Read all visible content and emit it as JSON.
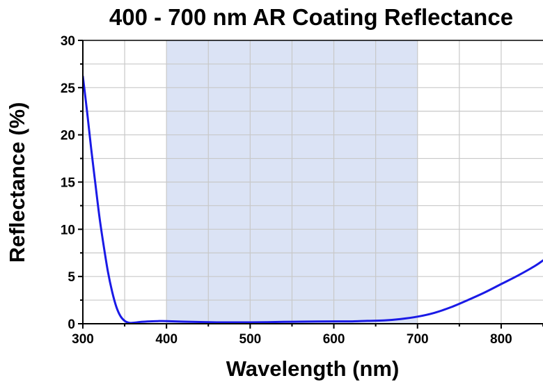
{
  "chart_data": {
    "type": "line",
    "title": "400 - 700 nm AR Coating Reflectance",
    "xlabel": "Wavelength (nm)",
    "ylabel": "Reflectance (%)",
    "xlim": [
      300,
      850
    ],
    "ylim": [
      0,
      30
    ],
    "x_ticks": [
      300,
      400,
      500,
      600,
      700,
      800
    ],
    "y_ticks": [
      0,
      5,
      10,
      15,
      20,
      25,
      30
    ],
    "grid": true,
    "legend": "none",
    "highlight_band": {
      "x_start": 400,
      "x_end": 700
    },
    "colors": {
      "line": "#1a1ae6",
      "band": "#dbe3f5",
      "grid": "#c8c8c8",
      "axes": "#000000"
    },
    "series": [
      {
        "x": [
          300,
          305,
          310,
          315,
          320,
          325,
          330,
          335,
          340,
          345,
          350,
          355,
          360,
          365,
          370,
          380,
          390,
          400,
          420,
          440,
          460,
          480,
          500,
          520,
          540,
          560,
          580,
          600,
          620,
          640,
          660,
          680,
          700,
          720,
          740,
          760,
          780,
          800,
          820,
          840,
          850
        ],
        "y": [
          26.2,
          22.5,
          18.5,
          14.8,
          11.2,
          8.2,
          5.5,
          3.4,
          1.8,
          0.8,
          0.3,
          0.1,
          0.1,
          0.15,
          0.2,
          0.25,
          0.28,
          0.28,
          0.22,
          0.18,
          0.15,
          0.15,
          0.15,
          0.17,
          0.2,
          0.22,
          0.24,
          0.25,
          0.25,
          0.3,
          0.35,
          0.5,
          0.75,
          1.15,
          1.75,
          2.5,
          3.3,
          4.2,
          5.1,
          6.1,
          6.7
        ]
      }
    ]
  }
}
